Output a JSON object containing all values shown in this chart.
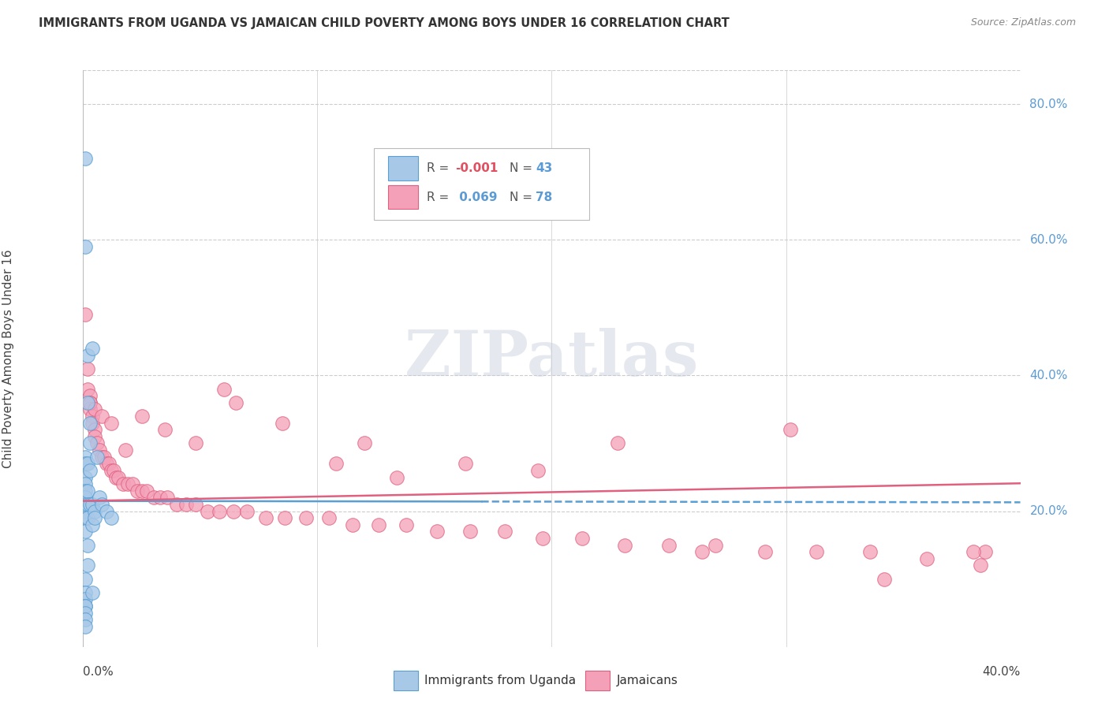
{
  "title": "IMMIGRANTS FROM UGANDA VS JAMAICAN CHILD POVERTY AMONG BOYS UNDER 16 CORRELATION CHART",
  "source": "Source: ZipAtlas.com",
  "ylabel": "Child Poverty Among Boys Under 16",
  "legend_label1": "Immigrants from Uganda",
  "legend_label2": "Jamaicans",
  "color_blue": "#a8c8e8",
  "color_pink": "#f4a0b8",
  "color_blue_edge": "#5a9fd4",
  "color_pink_edge": "#e06080",
  "color_blue_line": "#5a9fd4",
  "color_pink_line": "#e06080",
  "background_color": "#ffffff",
  "blue_x": [
    0.001,
    0.001,
    0.001,
    0.001,
    0.001,
    0.001,
    0.001,
    0.001,
    0.001,
    0.001,
    0.001,
    0.001,
    0.001,
    0.001,
    0.001,
    0.001,
    0.001,
    0.001,
    0.001,
    0.001,
    0.002,
    0.002,
    0.002,
    0.002,
    0.002,
    0.002,
    0.002,
    0.002,
    0.003,
    0.003,
    0.003,
    0.003,
    0.004,
    0.004,
    0.004,
    0.004,
    0.005,
    0.005,
    0.006,
    0.007,
    0.008,
    0.01,
    0.012
  ],
  "blue_y": [
    0.72,
    0.59,
    0.28,
    0.27,
    0.25,
    0.24,
    0.23,
    0.22,
    0.21,
    0.2,
    0.19,
    0.17,
    0.1,
    0.08,
    0.07,
    0.06,
    0.06,
    0.05,
    0.04,
    0.03,
    0.43,
    0.36,
    0.27,
    0.23,
    0.21,
    0.19,
    0.15,
    0.12,
    0.33,
    0.3,
    0.26,
    0.21,
    0.44,
    0.21,
    0.18,
    0.08,
    0.2,
    0.19,
    0.28,
    0.22,
    0.21,
    0.2,
    0.19
  ],
  "pink_x": [
    0.001,
    0.002,
    0.002,
    0.003,
    0.003,
    0.003,
    0.004,
    0.004,
    0.005,
    0.005,
    0.006,
    0.007,
    0.008,
    0.009,
    0.01,
    0.011,
    0.012,
    0.013,
    0.014,
    0.015,
    0.017,
    0.019,
    0.021,
    0.023,
    0.025,
    0.027,
    0.03,
    0.033,
    0.036,
    0.04,
    0.044,
    0.048,
    0.053,
    0.058,
    0.064,
    0.07,
    0.078,
    0.086,
    0.095,
    0.105,
    0.115,
    0.126,
    0.138,
    0.151,
    0.165,
    0.18,
    0.196,
    0.213,
    0.231,
    0.25,
    0.27,
    0.291,
    0.313,
    0.336,
    0.36,
    0.385,
    0.003,
    0.005,
    0.008,
    0.012,
    0.018,
    0.025,
    0.035,
    0.048,
    0.065,
    0.085,
    0.108,
    0.134,
    0.163,
    0.194,
    0.228,
    0.264,
    0.302,
    0.342,
    0.383,
    0.06,
    0.12,
    0.38
  ],
  "pink_y": [
    0.49,
    0.41,
    0.38,
    0.37,
    0.36,
    0.35,
    0.34,
    0.33,
    0.32,
    0.31,
    0.3,
    0.29,
    0.28,
    0.28,
    0.27,
    0.27,
    0.26,
    0.26,
    0.25,
    0.25,
    0.24,
    0.24,
    0.24,
    0.23,
    0.23,
    0.23,
    0.22,
    0.22,
    0.22,
    0.21,
    0.21,
    0.21,
    0.2,
    0.2,
    0.2,
    0.2,
    0.19,
    0.19,
    0.19,
    0.19,
    0.18,
    0.18,
    0.18,
    0.17,
    0.17,
    0.17,
    0.16,
    0.16,
    0.15,
    0.15,
    0.15,
    0.14,
    0.14,
    0.14,
    0.13,
    0.14,
    0.36,
    0.35,
    0.34,
    0.33,
    0.29,
    0.34,
    0.32,
    0.3,
    0.36,
    0.33,
    0.27,
    0.25,
    0.27,
    0.26,
    0.3,
    0.14,
    0.32,
    0.1,
    0.12,
    0.38,
    0.3,
    0.14
  ],
  "xlim": [
    0.0,
    0.4
  ],
  "ylim": [
    0.0,
    0.85
  ],
  "blue_line_y0": 0.215,
  "blue_line_slope": -0.005,
  "pink_line_y0": 0.215,
  "pink_line_slope": 0.065
}
